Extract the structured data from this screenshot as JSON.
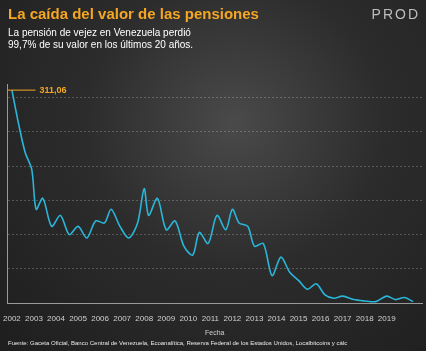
{
  "chart_data": {
    "type": "line",
    "title": "La caída del valor de las pensiones",
    "subtitle": [
      "La pensión de vejez en Venezuela perdió",
      "99,7% de su valor en los últimos 20 años."
    ],
    "logo": "PROD",
    "source": "Fuente: Gaceta Oficial, Banco Central de Venezuela, Ecoanalítica, Reserva Federal de los Estados Unidos, Localbitcoins y cálc",
    "x_label": "Fecha",
    "x": [
      2002.0,
      2002.3,
      2002.6,
      2002.9,
      2003.1,
      2003.4,
      2003.8,
      2004.2,
      2004.6,
      2005.0,
      2005.4,
      2005.8,
      2006.2,
      2006.5,
      2006.9,
      2007.3,
      2007.7,
      2008.0,
      2008.2,
      2008.6,
      2009.0,
      2009.4,
      2009.8,
      2010.2,
      2010.5,
      2010.9,
      2011.3,
      2011.7,
      2012.0,
      2012.3,
      2012.7,
      2013.0,
      2013.4,
      2013.8,
      2014.2,
      2014.6,
      2015.0,
      2015.4,
      2015.8,
      2016.2,
      2016.6,
      2017.0,
      2017.5,
      2018.0,
      2018.5,
      2019.0,
      2019.4,
      2019.8,
      2020.2
    ],
    "values": [
      311.06,
      262,
      220,
      195,
      137,
      153,
      112,
      128,
      100,
      112,
      95,
      120,
      117,
      137,
      112,
      95,
      117,
      167,
      128,
      153,
      107,
      120,
      83,
      70,
      103,
      87,
      128,
      107,
      137,
      117,
      112,
      83,
      87,
      40,
      67,
      45,
      33,
      20,
      28,
      12,
      7,
      10,
      5,
      3,
      2,
      10,
      5,
      8,
      2
    ],
    "color": "#29b6d8",
    "xlim": [
      2001.8,
      2020.6
    ],
    "xticks": [
      2002,
      2003,
      2004,
      2005,
      2006,
      2007,
      2008,
      2009,
      2010,
      2011,
      2012,
      2013,
      2014,
      2015,
      2016,
      2017,
      2018,
      2019
    ],
    "ylim": [
      0,
      320
    ],
    "yticks": [
      0,
      50,
      100,
      150,
      200,
      250,
      300
    ],
    "grid": true,
    "tick_labels": "x",
    "annotations": [
      {
        "text": "311,06",
        "value": 311.06,
        "color": "#f5a623"
      }
    ]
  }
}
